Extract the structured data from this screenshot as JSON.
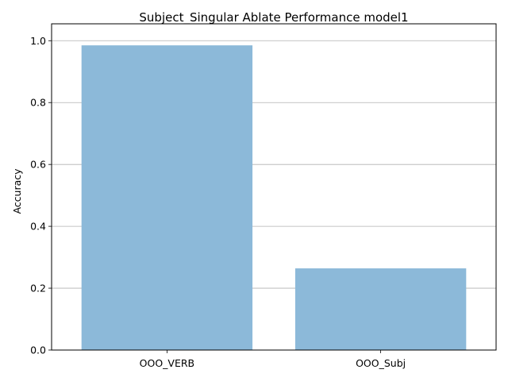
{
  "chart_data": {
    "type": "bar",
    "title": "Subject_Singular Ablate Performance model1",
    "xlabel": "",
    "ylabel": "Accuracy",
    "categories": [
      "OOO_VERB",
      "OOO_Subj"
    ],
    "values": [
      0.985,
      0.264
    ],
    "ylim": [
      0,
      1.0
    ],
    "yticks": [
      "0.0",
      "0.2",
      "0.4",
      "0.6",
      "0.8",
      "1.0"
    ],
    "grid": "horizontal",
    "bar_color": "#8cb9d9"
  }
}
